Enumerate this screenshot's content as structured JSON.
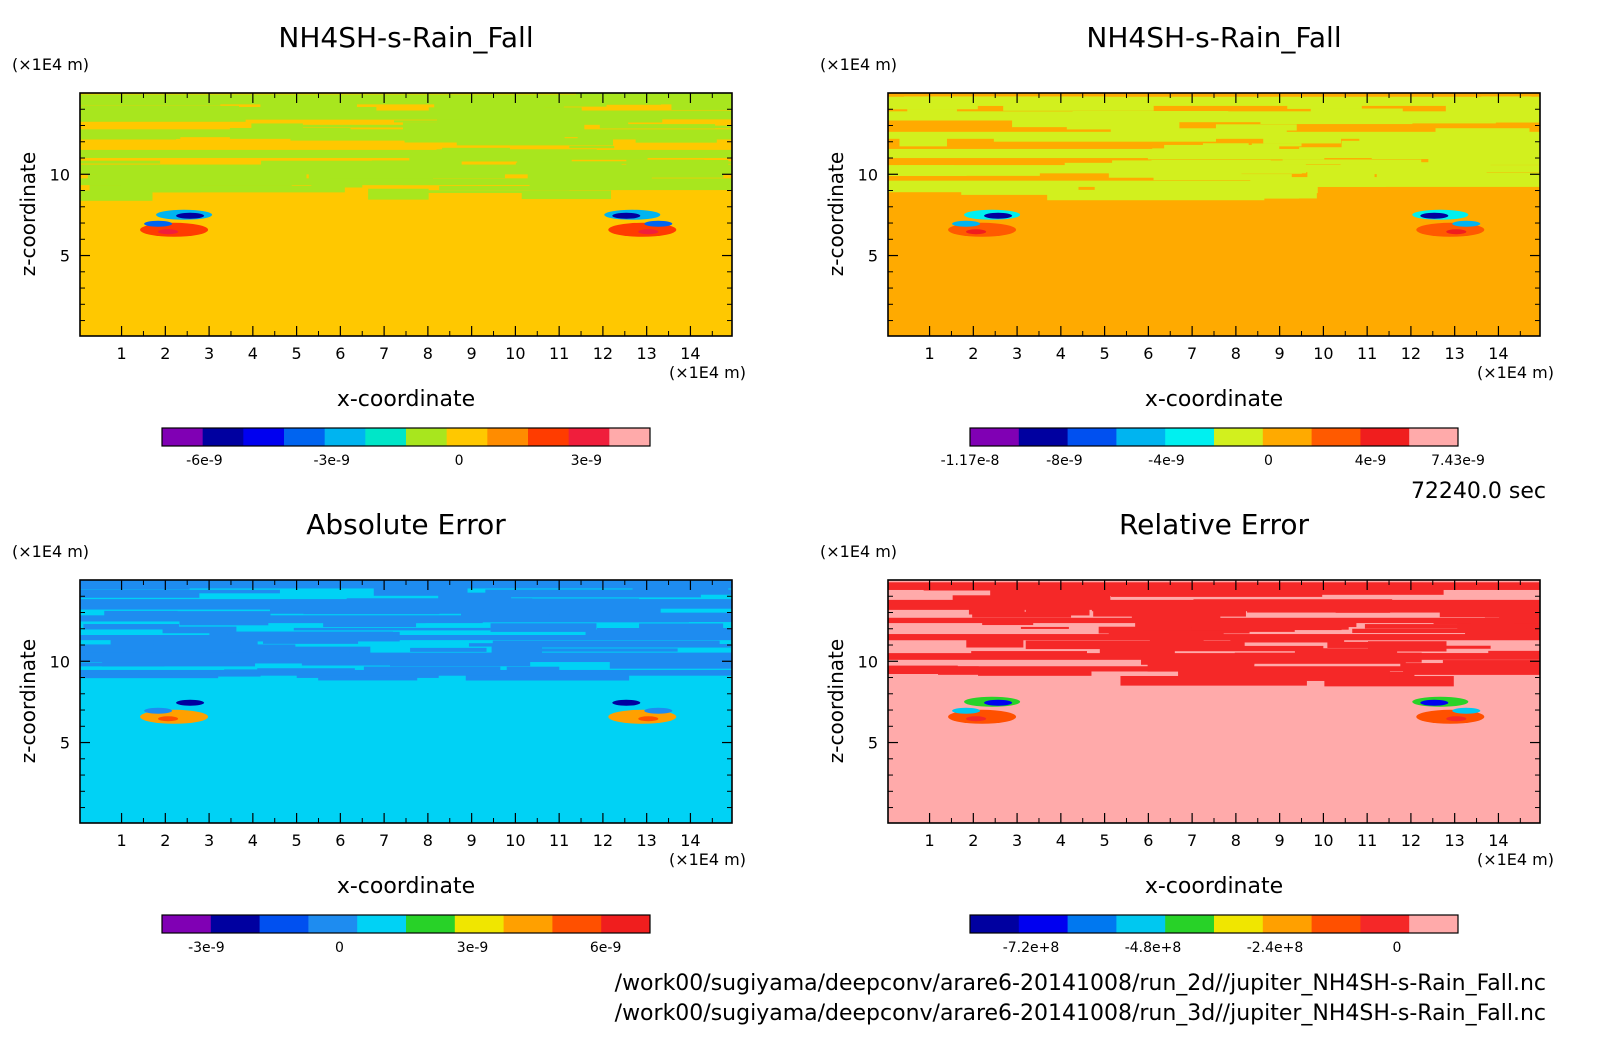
{
  "time_label": "72240.0 sec",
  "file_paths": [
    "/work00/sugiyama/deepconv/arare6-20141008/run_2d//jupiter_NH4SH-s-Rain_Fall.nc",
    "/work00/sugiyama/deepconv/arare6-20141008/run_3d//jupiter_NH4SH-s-Rain_Fall.nc"
  ],
  "chart_data": [
    {
      "type": "heatmap",
      "title": "NH4SH-s-Rain_Fall",
      "xlabel": "x-coordinate",
      "ylabel": "z-coordinate",
      "x_unit": "(×1E4 m)",
      "y_unit": "(×1E4 m)",
      "xlim": [
        0.05,
        14.95
      ],
      "ylim": [
        0.05,
        15
      ],
      "x_ticks": [
        "1",
        "2",
        "3",
        "4",
        "5",
        "6",
        "7",
        "8",
        "9",
        "10",
        "11",
        "12",
        "13",
        "14"
      ],
      "y_ticks": [
        "5",
        "10"
      ],
      "background_value": 0,
      "background_color": "#FFC800",
      "band_color": "#A8E61E",
      "colorbar": {
        "colors": [
          "#8000B4",
          "#0000A0",
          "#0000F0",
          "#0064F0",
          "#00B4F0",
          "#00E6C8",
          "#A8E61E",
          "#FFC800",
          "#FF8C00",
          "#FF3C00",
          "#F01E3C",
          "#FFAAAA"
        ],
        "tick_labels": [
          "-6e-9",
          "-3e-9",
          "0",
          "3e-9"
        ],
        "tick_values": [
          -6e-09,
          -3e-09,
          0,
          3e-09
        ],
        "range": [
          -7e-09,
          4.5e-09
        ]
      }
    },
    {
      "type": "heatmap",
      "title": "NH4SH-s-Rain_Fall",
      "xlabel": "x-coordinate",
      "ylabel": "z-coordinate",
      "x_unit": "(×1E4 m)",
      "y_unit": "(×1E4 m)",
      "xlim": [
        0.05,
        14.95
      ],
      "ylim": [
        0.05,
        15
      ],
      "x_ticks": [
        "1",
        "2",
        "3",
        "4",
        "5",
        "6",
        "7",
        "8",
        "9",
        "10",
        "11",
        "12",
        "13",
        "14"
      ],
      "y_ticks": [
        "5",
        "10"
      ],
      "background_value": 0,
      "background_color": "#FFAA00",
      "band_color": "#D2F01E",
      "colorbar": {
        "colors": [
          "#8000B4",
          "#0000A0",
          "#0050F0",
          "#00B4F0",
          "#00F0F0",
          "#D2F01E",
          "#FFAA00",
          "#FF5A00",
          "#F01E1E",
          "#FFAAAA"
        ],
        "tick_labels": [
          "-1.17e-8",
          "-8e-9",
          "-4e-9",
          "0",
          "4e-9",
          "7.43e-9"
        ],
        "tick_values": [
          -1.17e-08,
          -8e-09,
          -4e-09,
          0,
          4e-09,
          7.43e-09
        ],
        "range": [
          -1.17e-08,
          7.43e-09
        ]
      }
    },
    {
      "type": "heatmap",
      "title": "Absolute Error",
      "xlabel": "x-coordinate",
      "ylabel": "z-coordinate",
      "x_unit": "(×1E4 m)",
      "y_unit": "(×1E4 m)",
      "xlim": [
        0.05,
        14.95
      ],
      "ylim": [
        0.05,
        15
      ],
      "x_ticks": [
        "1",
        "2",
        "3",
        "4",
        "5",
        "6",
        "7",
        "8",
        "9",
        "10",
        "11",
        "12",
        "13",
        "14"
      ],
      "y_ticks": [
        "5",
        "10"
      ],
      "background_value": 0,
      "background_color": "#00D2F5",
      "band_color": "#1E8CF0",
      "colorbar": {
        "colors": [
          "#8000B4",
          "#0000A0",
          "#0050F0",
          "#1E8CF0",
          "#00D2F5",
          "#28D228",
          "#F0E600",
          "#FFA000",
          "#FF5000",
          "#F01E1E"
        ],
        "tick_labels": [
          "-3e-9",
          "0",
          "3e-9",
          "6e-9"
        ],
        "tick_values": [
          -3e-09,
          0,
          3e-09,
          6e-09
        ],
        "range": [
          -4e-09,
          7e-09
        ]
      }
    },
    {
      "type": "heatmap",
      "title": "Relative Error",
      "xlabel": "x-coordinate",
      "ylabel": "z-coordinate",
      "x_unit": "(×1E4 m)",
      "y_unit": "(×1E4 m)",
      "xlim": [
        0.05,
        14.95
      ],
      "ylim": [
        0.05,
        15
      ],
      "x_ticks": [
        "1",
        "2",
        "3",
        "4",
        "5",
        "6",
        "7",
        "8",
        "9",
        "10",
        "11",
        "12",
        "13",
        "14"
      ],
      "y_ticks": [
        "5",
        "10"
      ],
      "background_value": 0,
      "background_color": "#FFAAAA",
      "band_color": "#F52828",
      "colorbar": {
        "colors": [
          "#0000A0",
          "#0000F0",
          "#0078F0",
          "#00C8F0",
          "#28D228",
          "#F0E600",
          "#FFA000",
          "#FF5000",
          "#F52828",
          "#FFAAAA"
        ],
        "tick_labels": [
          "-7.2e+8",
          "-4.8e+8",
          "-2.4e+8",
          "0"
        ],
        "tick_values": [
          -720000000.0,
          -480000000.0,
          -240000000.0,
          0
        ],
        "range": [
          -840000000.0,
          120000000.0
        ]
      }
    }
  ]
}
